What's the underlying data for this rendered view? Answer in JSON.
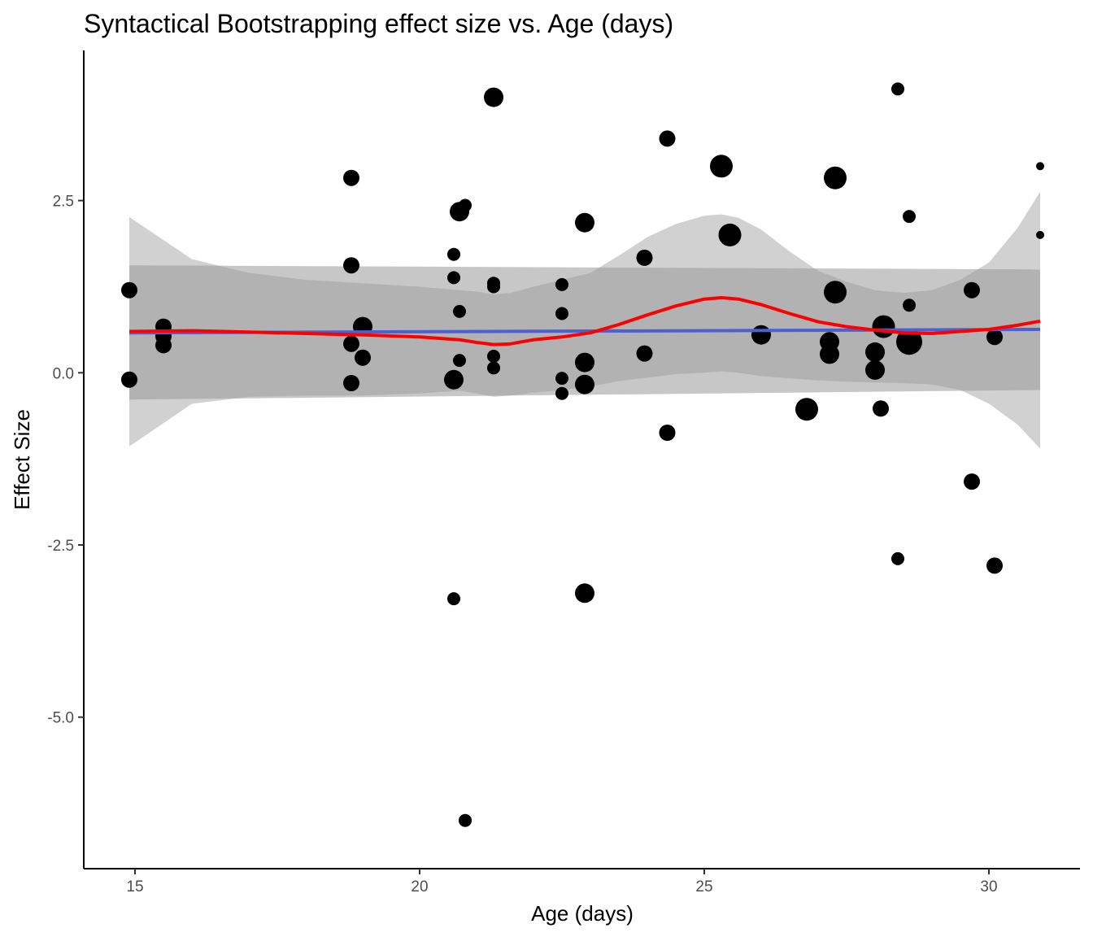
{
  "chart_data": {
    "type": "scatter",
    "title": "Syntactical Bootstrapping effect size vs. Age (days)",
    "xlabel": "Age (days)",
    "ylabel": "Effect Size",
    "xlim": [
      14.1,
      31.6
    ],
    "ylim": [
      -7.2,
      4.68
    ],
    "xticks": [
      15,
      20,
      25,
      30
    ],
    "xtick_labels": [
      "15",
      "20",
      "25",
      "30"
    ],
    "yticks": [
      -5.0,
      -2.5,
      0.0,
      2.5
    ],
    "ytick_labels": [
      "-5.0",
      "-2.5",
      "0.0",
      "2.5"
    ],
    "grid": false,
    "legend": "none",
    "colors": {
      "points": "#000000",
      "linear_fit": "#4e5fcf",
      "loess_fit": "#ff0000",
      "linear_band": "#999999",
      "loess_band": "#bdbdbd"
    },
    "points": [
      {
        "x": 14.9,
        "y": 1.2,
        "size": 2
      },
      {
        "x": 14.9,
        "y": -0.1,
        "size": 2
      },
      {
        "x": 15.5,
        "y": 0.67,
        "size": 2
      },
      {
        "x": 15.5,
        "y": 0.53,
        "size": 2
      },
      {
        "x": 15.5,
        "y": 0.4,
        "size": 2
      },
      {
        "x": 18.8,
        "y": 2.83,
        "size": 2
      },
      {
        "x": 18.8,
        "y": 1.56,
        "size": 2
      },
      {
        "x": 18.8,
        "y": 0.42,
        "size": 2
      },
      {
        "x": 18.8,
        "y": -0.15,
        "size": 2
      },
      {
        "x": 19.0,
        "y": 0.67,
        "size": 3
      },
      {
        "x": 19.0,
        "y": 0.22,
        "size": 2
      },
      {
        "x": 20.6,
        "y": 1.72,
        "size": 1
      },
      {
        "x": 20.6,
        "y": 1.38,
        "size": 1
      },
      {
        "x": 20.6,
        "y": -0.1,
        "size": 3
      },
      {
        "x": 20.6,
        "y": -3.28,
        "size": 1
      },
      {
        "x": 20.7,
        "y": 2.34,
        "size": 3
      },
      {
        "x": 20.7,
        "y": 0.89,
        "size": 1
      },
      {
        "x": 20.7,
        "y": 0.18,
        "size": 1
      },
      {
        "x": 20.8,
        "y": 2.43,
        "size": 1
      },
      {
        "x": 20.8,
        "y": -6.5,
        "size": 1
      },
      {
        "x": 21.3,
        "y": 4.0,
        "size": 3
      },
      {
        "x": 21.3,
        "y": 1.3,
        "size": 1
      },
      {
        "x": 21.3,
        "y": 1.25,
        "size": 1
      },
      {
        "x": 21.3,
        "y": 0.24,
        "size": 1
      },
      {
        "x": 21.3,
        "y": 0.07,
        "size": 1
      },
      {
        "x": 22.5,
        "y": 1.28,
        "size": 1
      },
      {
        "x": 22.5,
        "y": 0.86,
        "size": 1
      },
      {
        "x": 22.5,
        "y": -0.08,
        "size": 1
      },
      {
        "x": 22.5,
        "y": -0.3,
        "size": 1
      },
      {
        "x": 22.9,
        "y": 2.18,
        "size": 3
      },
      {
        "x": 22.9,
        "y": 0.15,
        "size": 3
      },
      {
        "x": 22.9,
        "y": -0.17,
        "size": 3
      },
      {
        "x": 22.9,
        "y": -3.2,
        "size": 3
      },
      {
        "x": 23.95,
        "y": 1.67,
        "size": 2
      },
      {
        "x": 23.95,
        "y": 0.28,
        "size": 2
      },
      {
        "x": 24.35,
        "y": 3.4,
        "size": 2
      },
      {
        "x": 24.35,
        "y": -0.87,
        "size": 2
      },
      {
        "x": 25.3,
        "y": 3.0,
        "size": 4
      },
      {
        "x": 25.45,
        "y": 2.0,
        "size": 4
      },
      {
        "x": 26.0,
        "y": 0.55,
        "size": 3
      },
      {
        "x": 26.8,
        "y": -0.53,
        "size": 4
      },
      {
        "x": 27.2,
        "y": 0.45,
        "size": 3
      },
      {
        "x": 27.2,
        "y": 0.27,
        "size": 3
      },
      {
        "x": 27.3,
        "y": 2.83,
        "size": 4
      },
      {
        "x": 27.3,
        "y": 1.17,
        "size": 4
      },
      {
        "x": 28.0,
        "y": 0.3,
        "size": 3
      },
      {
        "x": 28.0,
        "y": 0.04,
        "size": 3
      },
      {
        "x": 28.1,
        "y": -0.52,
        "size": 2
      },
      {
        "x": 28.15,
        "y": 0.67,
        "size": 4
      },
      {
        "x": 28.4,
        "y": 4.12,
        "size": 1
      },
      {
        "x": 28.4,
        "y": -2.7,
        "size": 1
      },
      {
        "x": 28.6,
        "y": 2.27,
        "size": 1
      },
      {
        "x": 28.6,
        "y": 0.98,
        "size": 1
      },
      {
        "x": 28.6,
        "y": 0.45,
        "size": 5
      },
      {
        "x": 29.7,
        "y": 1.2,
        "size": 2
      },
      {
        "x": 29.7,
        "y": -1.58,
        "size": 2
      },
      {
        "x": 30.1,
        "y": 0.52,
        "size": 2
      },
      {
        "x": 30.1,
        "y": -2.8,
        "size": 2
      },
      {
        "x": 30.9,
        "y": 3.0,
        "size": 0
      },
      {
        "x": 30.9,
        "y": 2.0,
        "size": 0
      }
    ],
    "series": [
      {
        "type": "linear_fit",
        "x": [
          14.9,
          30.9
        ],
        "y": [
          0.58,
          0.63
        ],
        "band_upper": [
          1.56,
          1.5
        ],
        "band_lower": [
          -0.39,
          -0.25
        ]
      },
      {
        "type": "loess_fit",
        "x": [
          14.9,
          16.0,
          17.0,
          18.0,
          19.0,
          20.0,
          20.7,
          21.0,
          21.3,
          21.6,
          22.0,
          22.5,
          23.0,
          23.5,
          24.0,
          24.5,
          25.0,
          25.3,
          25.6,
          26.0,
          26.5,
          27.0,
          27.5,
          28.0,
          28.5,
          29.0,
          29.5,
          30.0,
          30.5,
          30.9
        ],
        "y": [
          0.6,
          0.61,
          0.59,
          0.57,
          0.55,
          0.52,
          0.48,
          0.44,
          0.41,
          0.42,
          0.48,
          0.52,
          0.58,
          0.7,
          0.84,
          0.97,
          1.07,
          1.09,
          1.07,
          0.99,
          0.86,
          0.74,
          0.67,
          0.62,
          0.58,
          0.57,
          0.6,
          0.63,
          0.69,
          0.75
        ],
        "band_upper": [
          2.26,
          1.65,
          1.45,
          1.35,
          1.3,
          1.25,
          1.2,
          1.18,
          1.14,
          1.16,
          1.25,
          1.35,
          1.45,
          1.7,
          1.97,
          2.16,
          2.28,
          2.3,
          2.25,
          2.08,
          1.76,
          1.48,
          1.32,
          1.2,
          1.16,
          1.2,
          1.35,
          1.6,
          2.1,
          2.63
        ],
        "band_lower": [
          -1.07,
          -0.45,
          -0.35,
          -0.33,
          -0.33,
          -0.3,
          -0.26,
          -0.3,
          -0.35,
          -0.33,
          -0.29,
          -0.25,
          -0.2,
          -0.12,
          -0.07,
          -0.02,
          0.0,
          0.02,
          0.0,
          -0.05,
          -0.08,
          -0.11,
          -0.13,
          -0.14,
          -0.15,
          -0.17,
          -0.25,
          -0.45,
          -0.75,
          -1.1
        ]
      }
    ]
  }
}
